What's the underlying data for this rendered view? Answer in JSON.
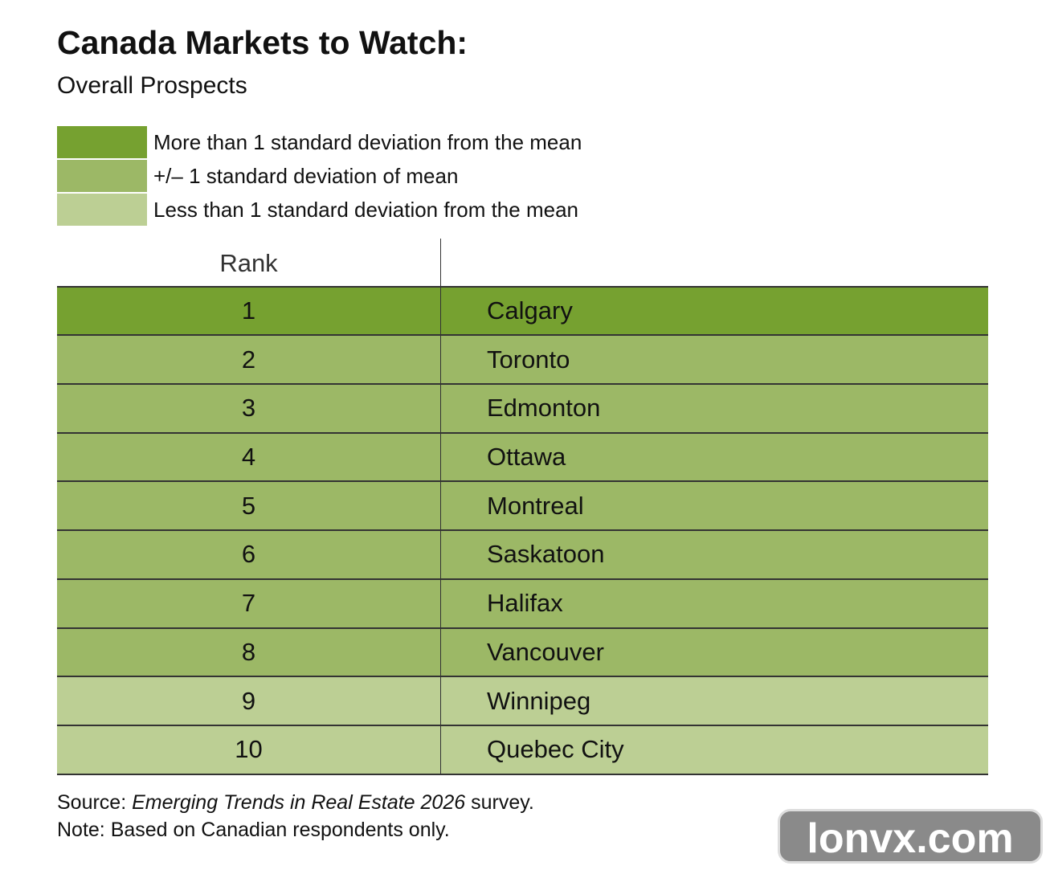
{
  "header": {
    "title": "Canada Markets to Watch:",
    "subtitle": "Overall Prospects"
  },
  "legend": [
    {
      "label": "More than 1 standard deviation from the mean",
      "color": "#76a130"
    },
    {
      "label": "+/– 1 standard deviation of mean",
      "color": "#9cb866"
    },
    {
      "label": "Less than 1 standard deviation from the mean",
      "color": "#bccf94"
    }
  ],
  "table": {
    "header": "Rank",
    "rows": [
      {
        "rank": "1",
        "market": "Calgary",
        "color": "#76a130"
      },
      {
        "rank": "2",
        "market": "Toronto",
        "color": "#9cb866"
      },
      {
        "rank": "3",
        "market": "Edmonton",
        "color": "#9cb866"
      },
      {
        "rank": "4",
        "market": "Ottawa",
        "color": "#9cb866"
      },
      {
        "rank": "5",
        "market": "Montreal",
        "color": "#9cb866"
      },
      {
        "rank": "6",
        "market": "Saskatoon",
        "color": "#9cb866"
      },
      {
        "rank": "7",
        "market": "Halifax",
        "color": "#9cb866"
      },
      {
        "rank": "8",
        "market": "Vancouver",
        "color": "#9cb866"
      },
      {
        "rank": "9",
        "market": "Winnipeg",
        "color": "#bccf94"
      },
      {
        "rank": "10",
        "market": "Quebec City",
        "color": "#bccf94"
      }
    ]
  },
  "footer": {
    "source_prefix": "Source: ",
    "source_title": "Emerging Trends in Real Estate 2026",
    "source_suffix": " survey.",
    "note": "Note: Based on Canadian respondents only."
  },
  "watermark": "lonvx.com"
}
